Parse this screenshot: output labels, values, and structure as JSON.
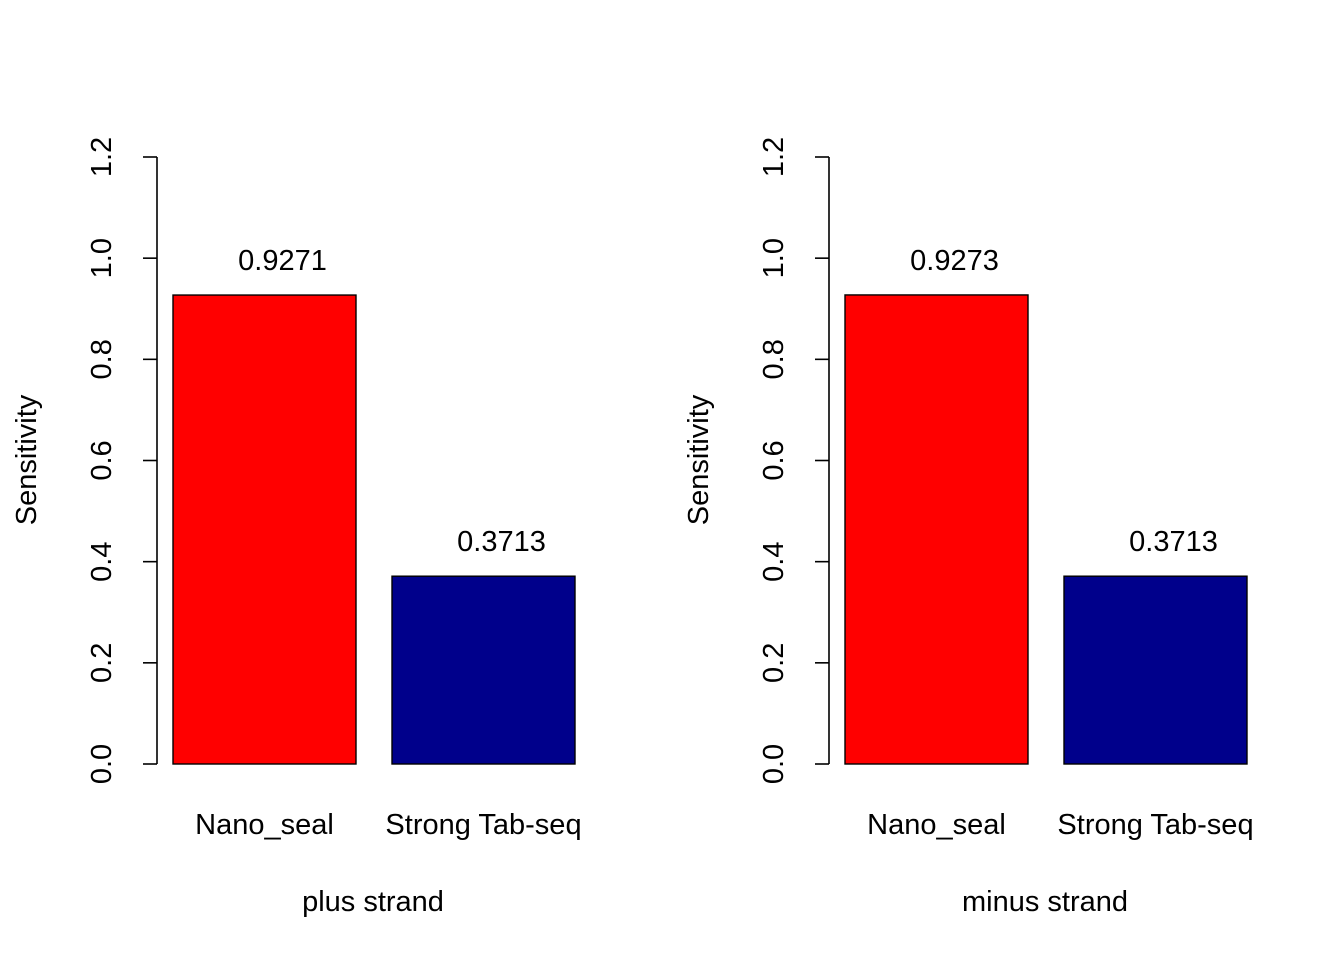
{
  "chart_data": [
    {
      "type": "bar",
      "categories": [
        "Nano_seal",
        "Strong Tab-seq"
      ],
      "values": [
        0.9271,
        0.3713
      ],
      "value_labels": [
        "0.9271",
        "0.3713"
      ],
      "bar_colors": [
        "#FF0000",
        "#00008B"
      ],
      "xlabel": "plus strand",
      "ylabel": "Sensitivity",
      "ylim": [
        0,
        1.2
      ],
      "yticks": [
        "0.0",
        "0.2",
        "0.4",
        "0.6",
        "0.8",
        "1.0",
        "1.2"
      ],
      "grid": false
    },
    {
      "type": "bar",
      "categories": [
        "Nano_seal",
        "Strong Tab-seq"
      ],
      "values": [
        0.9273,
        0.3713
      ],
      "value_labels": [
        "0.9273",
        "0.3713"
      ],
      "bar_colors": [
        "#FF0000",
        "#00008B"
      ],
      "xlabel": "minus strand",
      "ylabel": "Sensitivity",
      "ylim": [
        0,
        1.2
      ],
      "yticks": [
        "0.0",
        "0.2",
        "0.4",
        "0.6",
        "0.8",
        "1.0",
        "1.2"
      ],
      "grid": false
    }
  ]
}
